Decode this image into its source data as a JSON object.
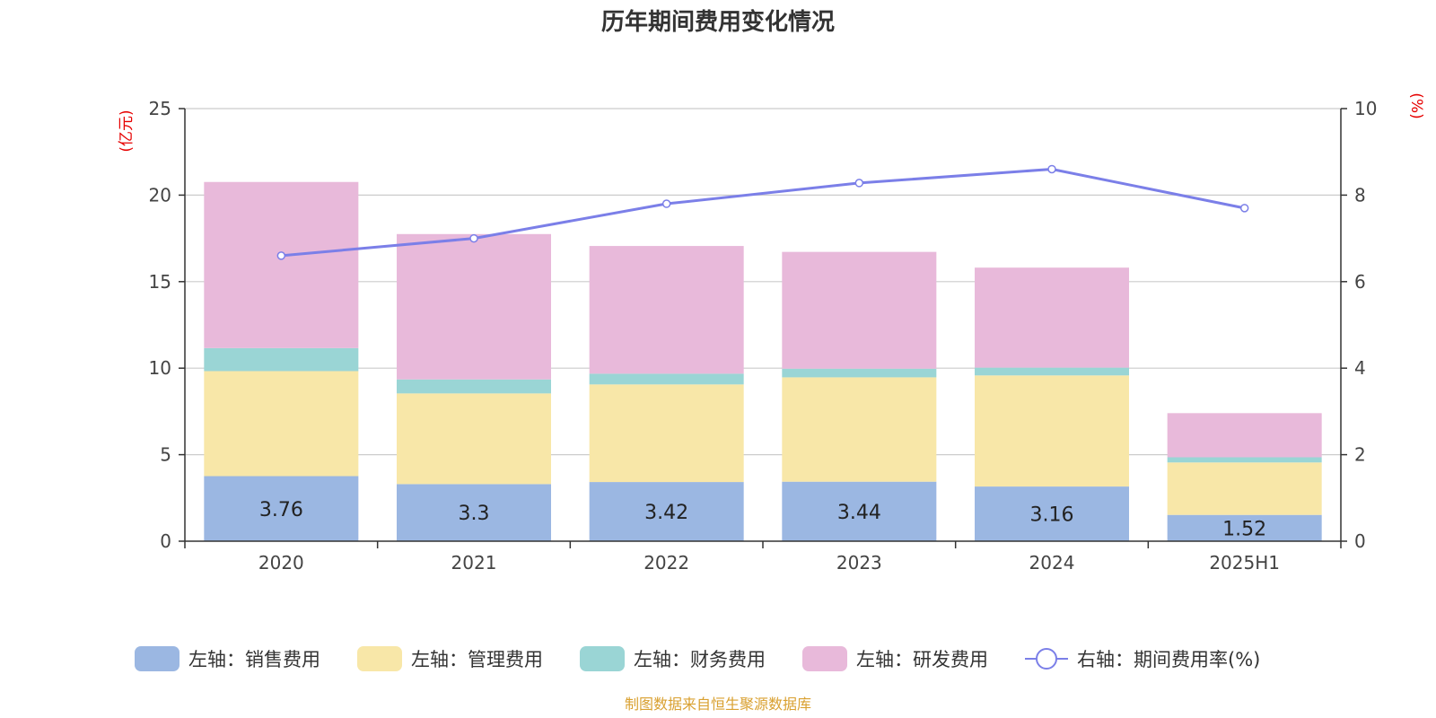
{
  "chart_data": {
    "type": "bar",
    "title": "历年期间费用变化情况",
    "left_axis_unit": "(亿元)",
    "right_axis_unit": "(%)",
    "categories": [
      "2020",
      "2021",
      "2022",
      "2023",
      "2024",
      "2025H1"
    ],
    "left_ylim": [
      0,
      25
    ],
    "left_ticks": [
      0,
      5,
      10,
      15,
      20,
      25
    ],
    "right_ylim": [
      0,
      10
    ],
    "right_ticks": [
      0,
      2,
      4,
      6,
      8,
      10
    ],
    "grid": true,
    "legend_position": "bottom",
    "series": [
      {
        "name": "左轴：销售费用",
        "axis": "left",
        "stack": "total",
        "color": "#9bb7e2",
        "values": [
          3.76,
          3.3,
          3.42,
          3.44,
          3.16,
          1.52
        ],
        "show_labels": true
      },
      {
        "name": "左轴：管理费用",
        "axis": "left",
        "stack": "total",
        "color": "#f8e7a8",
        "values": [
          6.07,
          5.24,
          5.64,
          6.03,
          6.42,
          3.03
        ],
        "show_labels": false
      },
      {
        "name": "左轴：财务费用",
        "axis": "left",
        "stack": "total",
        "color": "#9ad5d5",
        "values": [
          1.33,
          0.81,
          0.62,
          0.5,
          0.45,
          0.3
        ],
        "show_labels": false
      },
      {
        "name": "左轴：研发费用",
        "axis": "left",
        "stack": "total",
        "color": "#e8b9da",
        "values": [
          9.6,
          8.4,
          7.38,
          6.75,
          5.78,
          2.55
        ],
        "show_labels": false
      },
      {
        "name": "右轴：期间费用率(%)",
        "axis": "right",
        "type": "line",
        "color": "#7b7fe8",
        "values": [
          6.6,
          7.0,
          7.8,
          8.28,
          8.6,
          7.7
        ]
      }
    ],
    "source": "制图数据来自恒生聚源数据库",
    "colors": {
      "title": "#333333",
      "unit": "#e60000",
      "source": "#d9a030",
      "grid": "#cccccc",
      "axis": "#333333"
    }
  }
}
